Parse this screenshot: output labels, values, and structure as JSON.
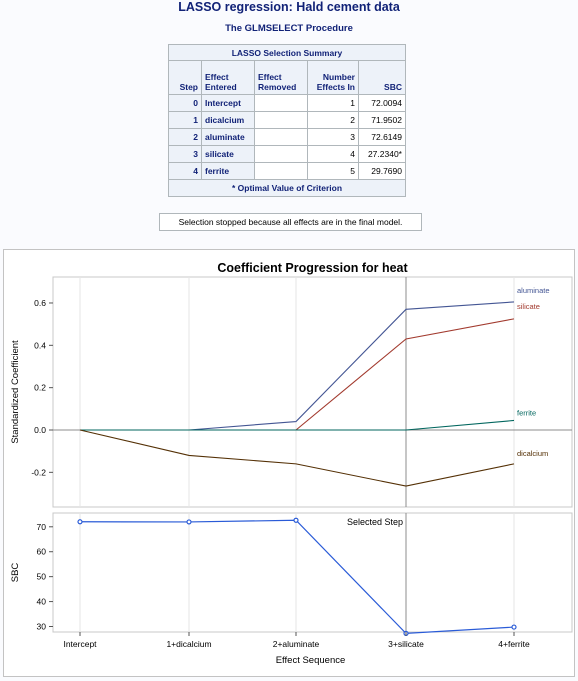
{
  "page_title": "LASSO regression: Hald cement data",
  "procedure": "The GLMSELECT Procedure",
  "summary_table": {
    "caption": "LASSO Selection Summary",
    "headers": {
      "step": "Step",
      "entered": [
        "Effect",
        "Entered"
      ],
      "removed": [
        "Effect",
        "Removed"
      ],
      "number": [
        "Number",
        "Effects In"
      ],
      "sbc": "SBC"
    },
    "rows": [
      {
        "step": "0",
        "entered": "Intercept",
        "removed": "",
        "number": "1",
        "sbc": "72.0094"
      },
      {
        "step": "1",
        "entered": "dicalcium",
        "removed": "",
        "number": "2",
        "sbc": "71.9502"
      },
      {
        "step": "2",
        "entered": "aluminate",
        "removed": "",
        "number": "3",
        "sbc": "72.6149"
      },
      {
        "step": "3",
        "entered": "silicate",
        "removed": "",
        "number": "4",
        "sbc": "27.2340*"
      },
      {
        "step": "4",
        "entered": "ferrite",
        "removed": "",
        "number": "5",
        "sbc": "29.7690"
      }
    ],
    "footnote": "* Optimal Value of Criterion"
  },
  "stop_note": "Selection stopped because all effects are in the final model.",
  "chart_data": {
    "type": "line",
    "title": "Coefficient Progression for heat",
    "x": [
      "Intercept",
      "1+dicalcium",
      "2+aluminate",
      "3+silicate",
      "4+ferrite"
    ],
    "xlabel": "Effect Sequence",
    "selected_step_label": "Selected Step",
    "selected_step_index": 3,
    "top_panel": {
      "ylabel": "Standardized Coefficient",
      "ylim": [
        -0.3,
        0.66
      ],
      "yticks": [
        "0.6",
        "0.4",
        "0.2",
        "0.0",
        "-0.2"
      ],
      "series": [
        {
          "name": "aluminate",
          "color": "#445694",
          "values": [
            0,
            0,
            0.04,
            0.57,
            0.605
          ]
        },
        {
          "name": "silicate",
          "color": "#a23a2e",
          "values": [
            0,
            0,
            0,
            0.43,
            0.525
          ]
        },
        {
          "name": "ferrite",
          "color": "#01665e",
          "values": [
            0,
            0,
            0,
            0,
            0.045
          ]
        },
        {
          "name": "dicalcium",
          "color": "#543005",
          "values": [
            0,
            -0.12,
            -0.16,
            -0.265,
            -0.16
          ]
        }
      ]
    },
    "bottom_panel": {
      "ylabel": "SBC",
      "ylim": [
        24.5,
        74.5
      ],
      "yticks": [
        "70",
        "60",
        "50",
        "40",
        "30"
      ],
      "series": [
        {
          "color": "#2a5bd7",
          "values": [
            72.0094,
            71.9502,
            72.6149,
            27.234,
            29.769
          ]
        }
      ]
    }
  }
}
